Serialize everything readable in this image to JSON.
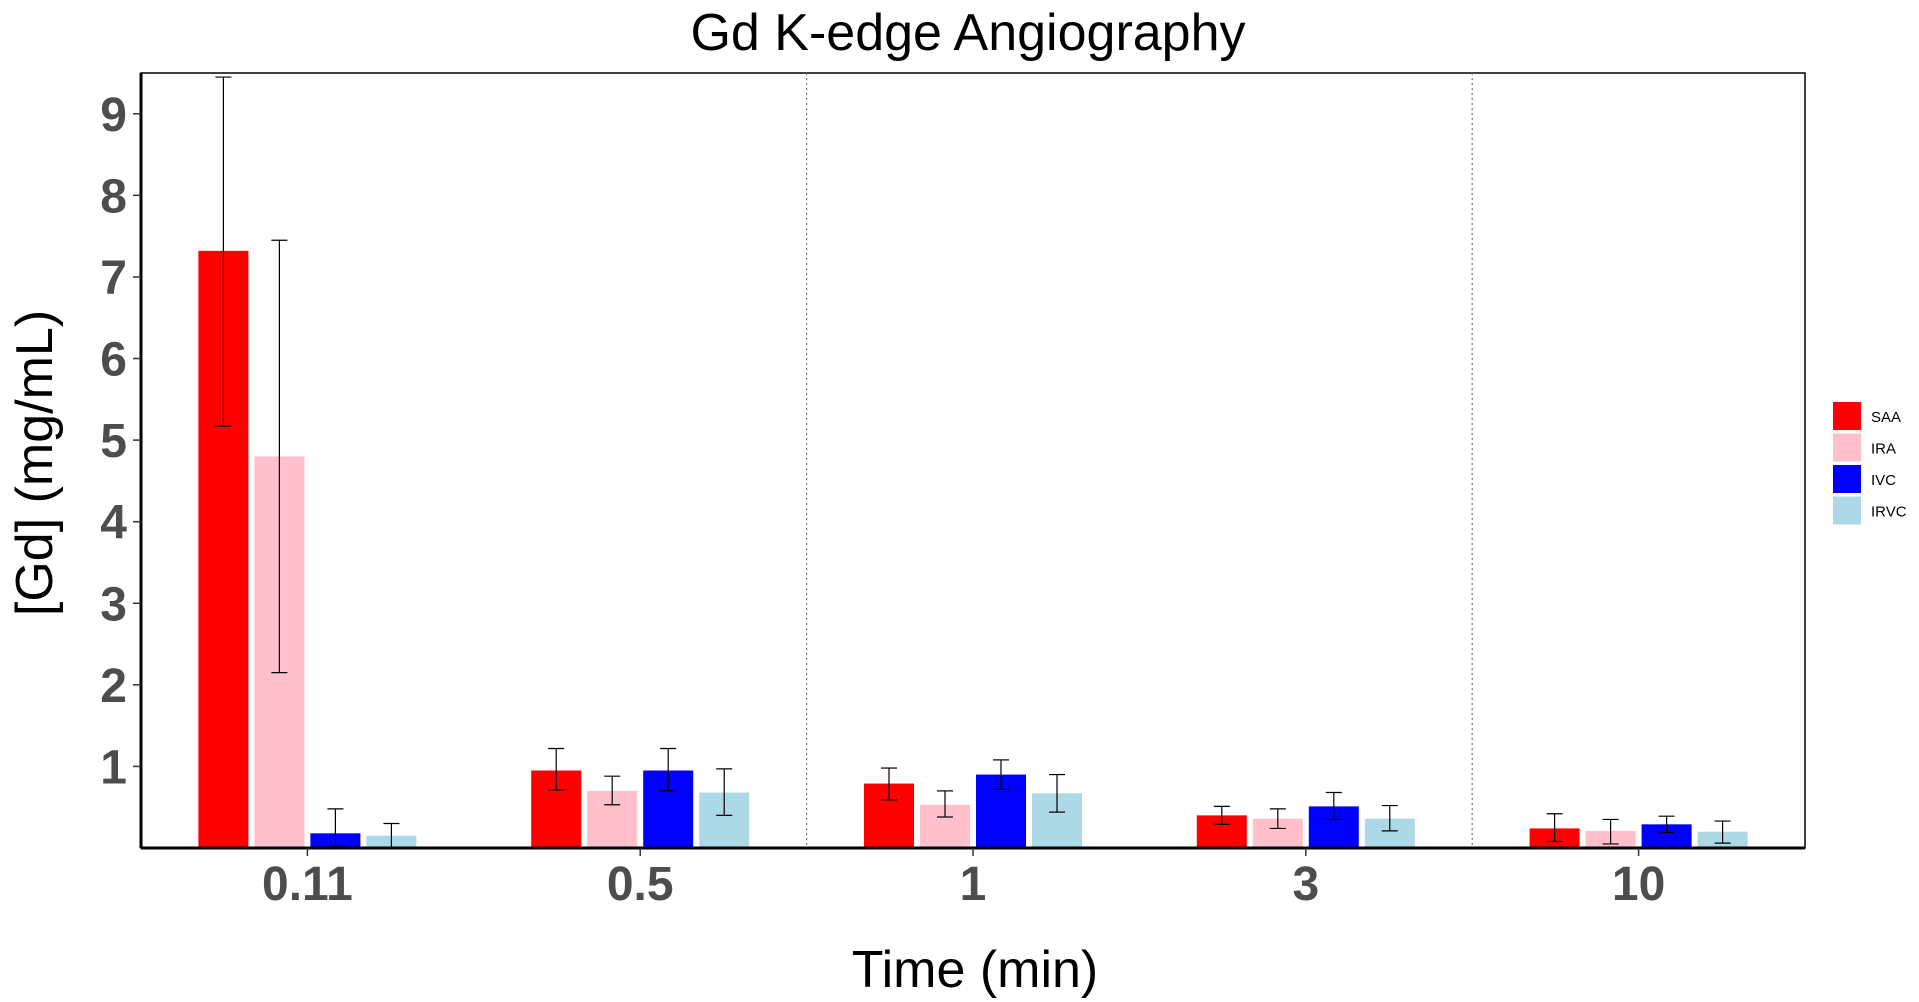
{
  "chart_data": {
    "type": "bar",
    "title": "Gd K-edge Angiography",
    "xlabel": "Time (min)",
    "ylabel": "[Gd] (mg/mL)",
    "categories": [
      "0.11",
      "0.5",
      "1",
      "3",
      "10"
    ],
    "ylim": [
      0,
      9.5
    ],
    "yticks": [
      "1",
      "2",
      "3",
      "4",
      "5",
      "6",
      "7",
      "8",
      "9"
    ],
    "grid": false,
    "legend_position": "right",
    "series": [
      {
        "name": "SAA",
        "color": "#ff0000",
        "values": [
          7.32,
          0.95,
          0.79,
          0.4,
          0.24
        ],
        "err_low": [
          5.17,
          0.71,
          0.59,
          0.29,
          0.08
        ],
        "err_high": [
          9.45,
          1.22,
          0.98,
          0.51,
          0.42
        ]
      },
      {
        "name": "IRA",
        "color": "#ffc0cb",
        "values": [
          4.8,
          0.7,
          0.53,
          0.36,
          0.21
        ],
        "err_low": [
          2.15,
          0.53,
          0.38,
          0.24,
          0.05
        ],
        "err_high": [
          7.45,
          0.88,
          0.7,
          0.48,
          0.35
        ]
      },
      {
        "name": "IVC",
        "color": "#0000ff",
        "values": [
          0.18,
          0.95,
          0.9,
          0.51,
          0.29
        ],
        "err_low": [
          0.02,
          0.7,
          0.72,
          0.35,
          0.19
        ],
        "err_high": [
          0.48,
          1.22,
          1.08,
          0.68,
          0.39
        ]
      },
      {
        "name": "IRVC",
        "color": "#add8e6",
        "values": [
          0.15,
          0.68,
          0.67,
          0.36,
          0.2
        ],
        "err_low": [
          0.01,
          0.4,
          0.44,
          0.21,
          0.06
        ],
        "err_high": [
          0.3,
          0.97,
          0.9,
          0.52,
          0.33
        ]
      }
    ]
  }
}
